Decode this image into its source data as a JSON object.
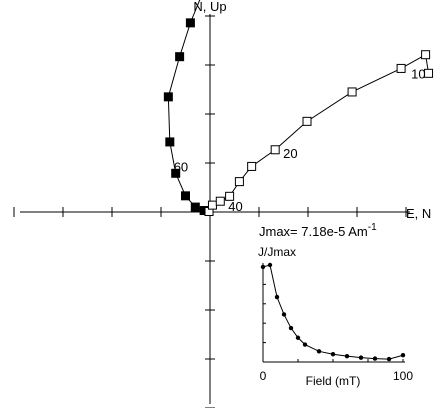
{
  "chart_data": [
    {
      "type": "scatter",
      "x_axis_label": "E, N",
      "y_axis_label": "N, Up",
      "series": [
        {
          "marker": "filled-square",
          "connected": true,
          "x": [
            -0.2,
            -1.2,
            -3.0,
            -5.0,
            -7.0,
            -8.2,
            -8.5,
            -6.2,
            -4.0,
            -1.6,
            -0.6
          ],
          "y": [
            0.1,
            0.3,
            1.0,
            3.3,
            7.9,
            14.3,
            23.5,
            31.7,
            38.6,
            44.5,
            44.9
          ]
        },
        {
          "marker": "open-square",
          "connected": true,
          "x": [
            -0.2,
            0.5,
            2.1,
            4.0,
            6.0,
            8.5,
            13.3,
            19.8,
            29.0,
            39.0,
            44.0,
            44.6
          ],
          "y": [
            0.1,
            1.4,
            2.2,
            3.2,
            6.2,
            9.3,
            12.7,
            18.5,
            24.5,
            29.3,
            32.1,
            28.3
          ]
        }
      ],
      "point_labels": [
        {
          "text": "10",
          "series": 1,
          "point": 9
        },
        {
          "text": "20",
          "series": 1,
          "point": 6
        },
        {
          "text": "40",
          "series": 1,
          "point": 2
        },
        {
          "text": "60",
          "series": 0,
          "point": 4
        }
      ],
      "annotation": {
        "text": "Jmax= 7.18e-5 Am",
        "superscript": "-1"
      },
      "ticks": {
        "x_step": 10,
        "x_min": -40,
        "x_max": 40,
        "y_step": 10,
        "y_min": -40,
        "y_max": 40
      }
    },
    {
      "type": "line",
      "title": "J/Jmax",
      "xlabel": "Field (mT)",
      "x_tick_labels": [
        "0",
        "100"
      ],
      "x": [
        0,
        5,
        10,
        15,
        20,
        25,
        30,
        40,
        50,
        60,
        70,
        80,
        90,
        100
      ],
      "y": [
        0.98,
        1.0,
        0.67,
        0.49,
        0.35,
        0.25,
        0.18,
        0.11,
        0.08,
        0.06,
        0.045,
        0.035,
        0.03,
        0.07
      ],
      "xlim": [
        0,
        100
      ],
      "ylim": [
        0,
        1
      ]
    }
  ]
}
